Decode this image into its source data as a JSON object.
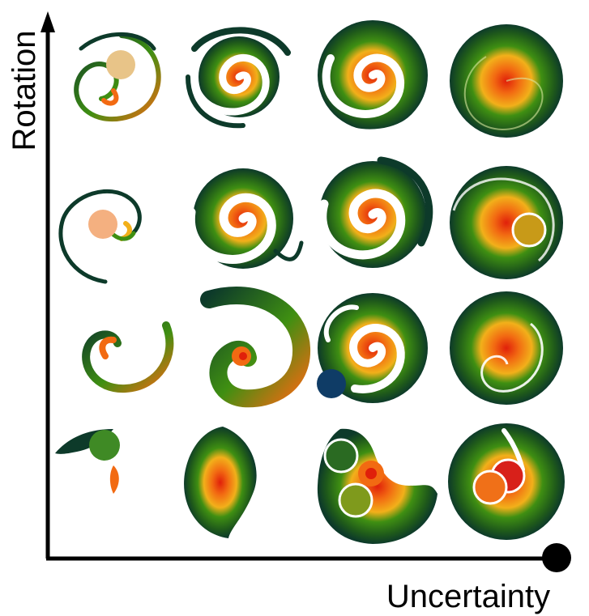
{
  "axes": {
    "x_label": "Uncertainty",
    "y_label": "Rotation"
  },
  "colors": {
    "center": "#e0200a",
    "mid_orange": "#f26a12",
    "mid_green": "#3f8f12",
    "outer": "#0d3a2a",
    "highlight": "#ffffff",
    "axis": "#000000"
  },
  "grid": {
    "rows": 4,
    "cols": 4
  },
  "glyphs": [
    {
      "row": 1,
      "col": 1,
      "uncertainty": 1,
      "rotation": 4
    },
    {
      "row": 1,
      "col": 2,
      "uncertainty": 2,
      "rotation": 4
    },
    {
      "row": 1,
      "col": 3,
      "uncertainty": 3,
      "rotation": 4
    },
    {
      "row": 1,
      "col": 4,
      "uncertainty": 4,
      "rotation": 4
    },
    {
      "row": 2,
      "col": 1,
      "uncertainty": 1,
      "rotation": 3
    },
    {
      "row": 2,
      "col": 2,
      "uncertainty": 2,
      "rotation": 3
    },
    {
      "row": 2,
      "col": 3,
      "uncertainty": 3,
      "rotation": 3
    },
    {
      "row": 2,
      "col": 4,
      "uncertainty": 4,
      "rotation": 3
    },
    {
      "row": 3,
      "col": 1,
      "uncertainty": 1,
      "rotation": 2
    },
    {
      "row": 3,
      "col": 2,
      "uncertainty": 2,
      "rotation": 2
    },
    {
      "row": 3,
      "col": 3,
      "uncertainty": 3,
      "rotation": 2
    },
    {
      "row": 3,
      "col": 4,
      "uncertainty": 4,
      "rotation": 2
    },
    {
      "row": 4,
      "col": 1,
      "uncertainty": 1,
      "rotation": 1
    },
    {
      "row": 4,
      "col": 2,
      "uncertainty": 2,
      "rotation": 1
    },
    {
      "row": 4,
      "col": 3,
      "uncertainty": 3,
      "rotation": 1
    },
    {
      "row": 4,
      "col": 4,
      "uncertainty": 4,
      "rotation": 1
    }
  ],
  "markers": [
    {
      "name": "marker-wheat",
      "color": "#e8c488",
      "glyph": "1-1",
      "outlined": false
    },
    {
      "name": "marker-peach",
      "color": "#f4b080",
      "glyph": "2-1",
      "outlined": false
    },
    {
      "name": "marker-gold",
      "color": "#c89a18",
      "glyph": "2-4",
      "outlined": true
    },
    {
      "name": "marker-navy",
      "color": "#0f3c66",
      "glyph": "3-3",
      "outlined": false
    },
    {
      "name": "marker-green-1",
      "color": "#3f8a25",
      "glyph": "4-1",
      "outlined": false
    },
    {
      "name": "marker-green-2",
      "color": "#2a6a22",
      "glyph": "4-3",
      "outlined": true
    },
    {
      "name": "marker-olive",
      "color": "#7f9a1c",
      "glyph": "4-3",
      "outlined": true
    },
    {
      "name": "marker-red",
      "color": "#d8201a",
      "glyph": "4-4",
      "outlined": true
    },
    {
      "name": "marker-orange",
      "color": "#f07018",
      "glyph": "4-4",
      "outlined": true
    },
    {
      "name": "marker-black",
      "color": "#000000",
      "glyph": "corner",
      "outlined": false
    }
  ]
}
